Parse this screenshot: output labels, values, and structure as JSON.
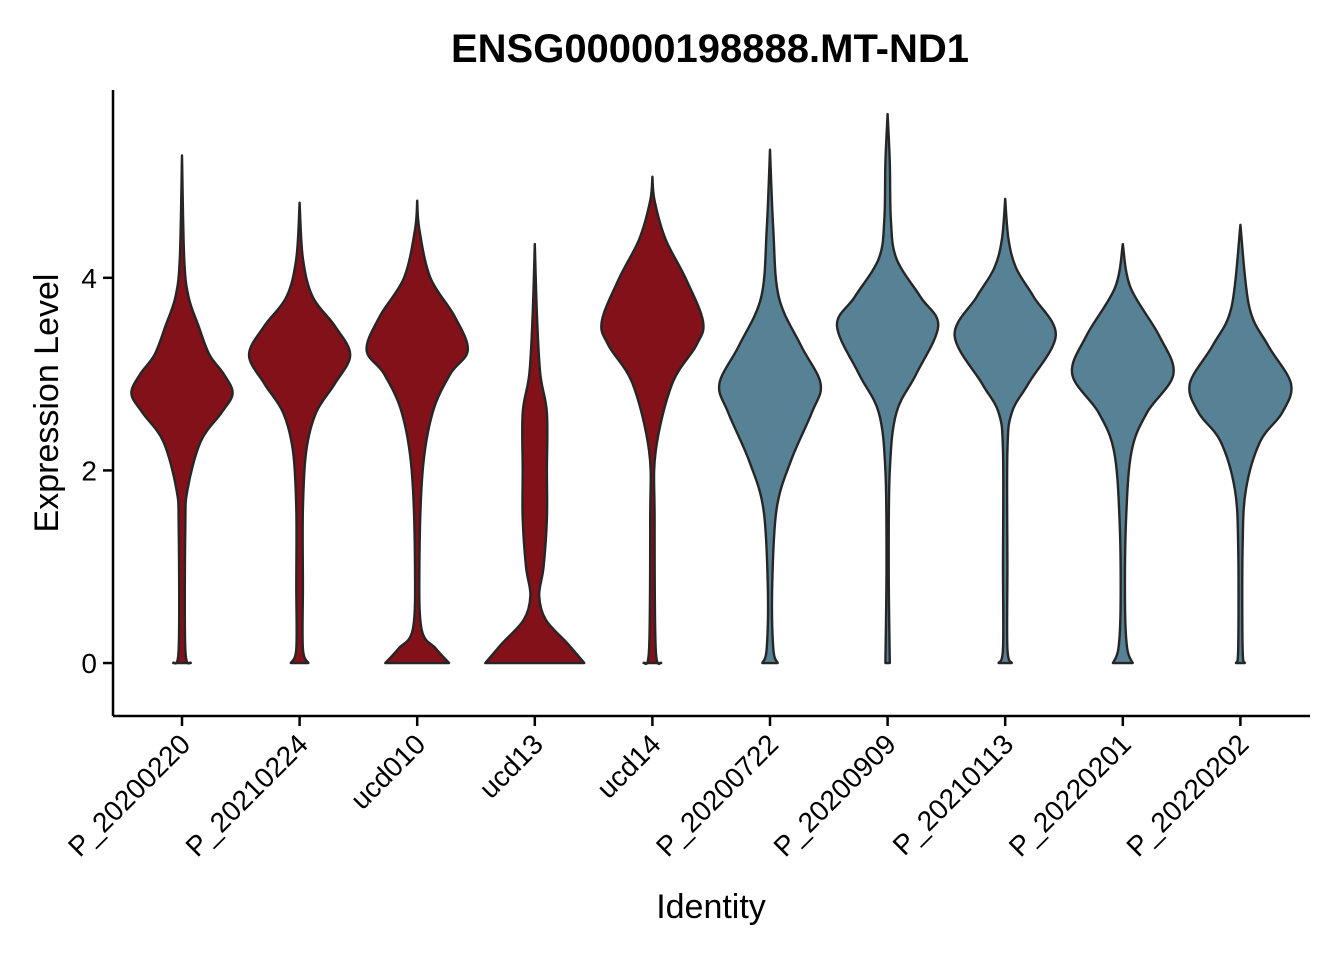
{
  "chart_data": {
    "type": "violin",
    "title": "ENSG00000198888.MT-ND1",
    "xlabel": "Identity",
    "ylabel": "Expression Level",
    "ylim": [
      -0.55,
      5.95
    ],
    "yticks": [
      0,
      2,
      4
    ],
    "grid": false,
    "legend": "none",
    "categories": [
      "P_20200220",
      "P_20210224",
      "ucd010",
      "ucd13",
      "ucd14",
      "P_20200722",
      "P_20200909",
      "P_20210113",
      "P_20220201",
      "P_20220202"
    ],
    "colors": [
      "#82111a",
      "#82111a",
      "#82111a",
      "#82111a",
      "#82111a",
      "#578194",
      "#578194",
      "#578194",
      "#578194",
      "#578194"
    ],
    "violins": [
      {
        "max": 5.27,
        "widths": [
          [
            0.0,
            0.08
          ],
          [
            0.15,
            0.03
          ],
          [
            1.4,
            0.03
          ],
          [
            1.8,
            0.05
          ],
          [
            2.3,
            0.17
          ],
          [
            2.6,
            0.36
          ],
          [
            2.8,
            0.46
          ],
          [
            3.0,
            0.38
          ],
          [
            3.2,
            0.25
          ],
          [
            3.5,
            0.15
          ],
          [
            3.8,
            0.06
          ],
          [
            4.2,
            0.02
          ],
          [
            5.27,
            0.0
          ]
        ]
      },
      {
        "max": 4.78,
        "widths": [
          [
            0.0,
            0.08
          ],
          [
            0.15,
            0.03
          ],
          [
            0.8,
            0.03
          ],
          [
            1.6,
            0.03
          ],
          [
            2.2,
            0.06
          ],
          [
            2.6,
            0.15
          ],
          [
            2.9,
            0.32
          ],
          [
            3.2,
            0.46
          ],
          [
            3.5,
            0.32
          ],
          [
            3.8,
            0.12
          ],
          [
            4.2,
            0.03
          ],
          [
            4.78,
            0.0
          ]
        ]
      },
      {
        "max": 4.8,
        "widths": [
          [
            0.0,
            0.29
          ],
          [
            0.15,
            0.17
          ],
          [
            0.35,
            0.04
          ],
          [
            1.0,
            0.02
          ],
          [
            2.0,
            0.05
          ],
          [
            2.6,
            0.14
          ],
          [
            3.0,
            0.3
          ],
          [
            3.25,
            0.46
          ],
          [
            3.6,
            0.34
          ],
          [
            4.0,
            0.12
          ],
          [
            4.5,
            0.02
          ],
          [
            4.8,
            0.0
          ]
        ]
      },
      {
        "max": 4.35,
        "widths": [
          [
            0.0,
            0.45
          ],
          [
            0.2,
            0.3
          ],
          [
            0.45,
            0.1
          ],
          [
            0.7,
            0.04
          ],
          [
            1.0,
            0.08
          ],
          [
            1.5,
            0.11
          ],
          [
            2.0,
            0.11
          ],
          [
            2.6,
            0.11
          ],
          [
            3.0,
            0.05
          ],
          [
            3.6,
            0.02
          ],
          [
            4.35,
            0.0
          ]
        ]
      },
      {
        "max": 5.05,
        "widths": [
          [
            0.0,
            0.08
          ],
          [
            0.15,
            0.03
          ],
          [
            1.5,
            0.02
          ],
          [
            2.2,
            0.03
          ],
          [
            2.9,
            0.18
          ],
          [
            3.3,
            0.4
          ],
          [
            3.55,
            0.46
          ],
          [
            4.0,
            0.3
          ],
          [
            4.4,
            0.12
          ],
          [
            4.8,
            0.02
          ],
          [
            5.05,
            0.0
          ]
        ]
      },
      {
        "max": 5.33,
        "widths": [
          [
            0.0,
            0.07
          ],
          [
            0.15,
            0.03
          ],
          [
            0.8,
            0.02
          ],
          [
            1.6,
            0.06
          ],
          [
            2.1,
            0.19
          ],
          [
            2.6,
            0.38
          ],
          [
            2.9,
            0.46
          ],
          [
            3.3,
            0.28
          ],
          [
            3.8,
            0.08
          ],
          [
            4.5,
            0.03
          ],
          [
            5.33,
            0.0
          ]
        ]
      },
      {
        "max": 5.7,
        "widths": [
          [
            0.0,
            0.02
          ],
          [
            1.0,
            0.01
          ],
          [
            2.0,
            0.02
          ],
          [
            2.6,
            0.08
          ],
          [
            3.0,
            0.26
          ],
          [
            3.5,
            0.46
          ],
          [
            3.8,
            0.3
          ],
          [
            4.2,
            0.08
          ],
          [
            4.6,
            0.03
          ],
          [
            5.2,
            0.02
          ],
          [
            5.7,
            0.0
          ]
        ]
      },
      {
        "max": 4.82,
        "widths": [
          [
            0.0,
            0.06
          ],
          [
            0.15,
            0.02
          ],
          [
            1.0,
            0.02
          ],
          [
            2.2,
            0.02
          ],
          [
            2.6,
            0.06
          ],
          [
            2.9,
            0.21
          ],
          [
            3.4,
            0.46
          ],
          [
            3.8,
            0.26
          ],
          [
            4.1,
            0.1
          ],
          [
            4.4,
            0.03
          ],
          [
            4.82,
            0.0
          ]
        ]
      },
      {
        "max": 4.35,
        "widths": [
          [
            0.0,
            0.09
          ],
          [
            0.15,
            0.04
          ],
          [
            0.6,
            0.02
          ],
          [
            1.5,
            0.03
          ],
          [
            2.2,
            0.08
          ],
          [
            2.6,
            0.22
          ],
          [
            3.0,
            0.46
          ],
          [
            3.4,
            0.33
          ],
          [
            3.9,
            0.07
          ],
          [
            4.35,
            0.0
          ]
        ]
      },
      {
        "max": 4.55,
        "widths": [
          [
            0.0,
            0.04
          ],
          [
            0.15,
            0.02
          ],
          [
            1.2,
            0.02
          ],
          [
            1.8,
            0.05
          ],
          [
            2.3,
            0.18
          ],
          [
            2.6,
            0.38
          ],
          [
            2.9,
            0.46
          ],
          [
            3.3,
            0.25
          ],
          [
            3.7,
            0.08
          ],
          [
            4.55,
            0.0
          ]
        ]
      }
    ]
  }
}
